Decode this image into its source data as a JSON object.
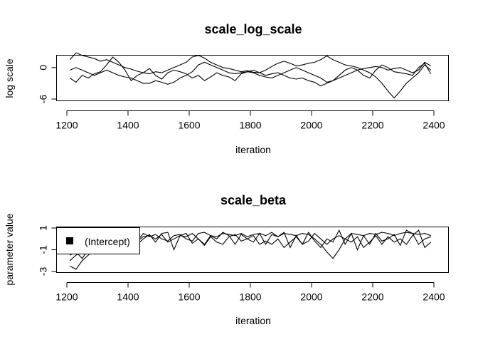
{
  "chart_data": [
    {
      "type": "line",
      "title": "scale_log_scale",
      "xlabel": "iteration",
      "ylabel": "log scale",
      "xlim": [
        1200,
        2400
      ],
      "ylim": [
        -6,
        2
      ],
      "xticks": [
        1200,
        1400,
        1600,
        1800,
        2000,
        2200,
        2400
      ],
      "yticks": [
        -6,
        0
      ],
      "ytick_labels": [
        "-6",
        "0"
      ],
      "x": [
        1210,
        1230,
        1250,
        1270,
        1290,
        1310,
        1330,
        1350,
        1370,
        1390,
        1410,
        1430,
        1450,
        1470,
        1490,
        1510,
        1530,
        1550,
        1570,
        1590,
        1610,
        1630,
        1650,
        1670,
        1690,
        1710,
        1730,
        1750,
        1770,
        1790,
        1810,
        1830,
        1850,
        1870,
        1890,
        1910,
        1930,
        1950,
        1970,
        1990,
        2010,
        2030,
        2050,
        2070,
        2090,
        2110,
        2130,
        2150,
        2170,
        2190,
        2210,
        2230,
        2250,
        2270,
        2290,
        2310,
        2330,
        2350,
        2370,
        2390
      ],
      "series": [
        {
          "values": [
            1.5,
            2.8,
            2.3,
            2.0,
            1.7,
            1.2,
            1.5,
            1.0,
            0.5,
            0.0,
            -0.3,
            -0.7,
            -1.0,
            -1.2,
            -0.8,
            -1.0,
            -0.5,
            0.0,
            0.5,
            1.0,
            2.0,
            2.3,
            1.8,
            1.0,
            0.5,
            0.0,
            -0.2,
            -0.5,
            -0.8,
            -0.6,
            -0.9,
            -1.0,
            -0.5,
            0.2,
            0.8,
            1.2,
            0.8,
            0.3,
            0.5,
            0.8,
            1.0,
            1.5,
            2.2,
            1.5,
            1.0,
            0.5,
            0.3,
            0.0,
            -0.5,
            -1.0,
            -1.8,
            -3.0,
            -4.5,
            -5.8,
            -4.5,
            -3.0,
            -2.0,
            -1.0,
            0.5,
            -0.5
          ]
        },
        {
          "values": [
            -0.5,
            0.0,
            -0.5,
            -1.0,
            -1.5,
            -1.0,
            -0.5,
            -1.0,
            -1.5,
            -1.8,
            -2.0,
            -2.5,
            -3.0,
            -3.0,
            -2.5,
            -2.8,
            -3.2,
            -2.8,
            -2.0,
            -1.5,
            -0.8,
            0.5,
            1.0,
            0.5,
            0.0,
            -0.5,
            -1.0,
            -1.2,
            -1.0,
            -0.8,
            -1.0,
            -1.5,
            -1.8,
            -2.0,
            -1.5,
            -1.0,
            -0.5,
            0.0,
            -0.5,
            -1.0,
            -1.5,
            -2.0,
            -2.8,
            -2.5,
            -2.0,
            -1.5,
            -1.0,
            -0.5,
            -0.2,
            0.0,
            0.2,
            0.0,
            -0.5,
            -0.2,
            0.0,
            -0.5,
            -1.0,
            -0.5,
            1.0,
            0.3
          ]
        },
        {
          "values": [
            -2.0,
            -2.8,
            -1.5,
            -2.0,
            -1.2,
            -0.8,
            0.5,
            2.0,
            1.0,
            -0.5,
            -2.5,
            -1.5,
            -1.0,
            -0.2,
            -1.5,
            -2.2,
            -1.0,
            -0.5,
            -0.8,
            -1.2,
            -2.0,
            -1.5,
            -2.5,
            -1.8,
            -1.0,
            -1.5,
            -1.8,
            -2.5,
            -1.2,
            -0.8,
            -0.5,
            -1.0,
            -1.5,
            -1.2,
            -1.0,
            -1.5,
            -2.0,
            -2.2,
            -2.0,
            -2.5,
            -2.8,
            -3.5,
            -3.0,
            -2.5,
            -1.5,
            -0.5,
            0.0,
            -0.5,
            -1.5,
            -2.0,
            -0.5,
            0.5,
            0.0,
            -0.8,
            -1.0,
            -1.2,
            -1.5,
            0.0,
            0.8,
            -1.2
          ]
        }
      ]
    },
    {
      "type": "line",
      "title": "scale_beta",
      "xlabel": "iteration",
      "ylabel": "parameter value",
      "xlim": [
        1200,
        2400
      ],
      "ylim": [
        -3,
        1
      ],
      "xticks": [
        1200,
        1400,
        1600,
        1800,
        2000,
        2200,
        2400
      ],
      "yticks": [
        -3,
        -1,
        1
      ],
      "ytick_labels": [
        "-3",
        "-1",
        "1"
      ],
      "legend": {
        "position": "top-left",
        "entries": [
          "(Intercept)"
        ]
      },
      "x": [
        1210,
        1230,
        1250,
        1270,
        1290,
        1310,
        1330,
        1350,
        1370,
        1390,
        1410,
        1430,
        1450,
        1470,
        1490,
        1510,
        1530,
        1550,
        1570,
        1590,
        1610,
        1630,
        1650,
        1670,
        1690,
        1710,
        1730,
        1750,
        1770,
        1790,
        1810,
        1830,
        1850,
        1870,
        1890,
        1910,
        1930,
        1950,
        1970,
        1990,
        2010,
        2030,
        2050,
        2070,
        2090,
        2110,
        2130,
        2150,
        2170,
        2190,
        2210,
        2230,
        2250,
        2270,
        2290,
        2310,
        2330,
        2350,
        2370,
        2390
      ],
      "series": [
        {
          "values": [
            -2.5,
            -2.8,
            -2.0,
            -1.5,
            -1.0,
            -0.8,
            -0.5,
            -1.0,
            -0.5,
            -1.2,
            -0.3,
            -0.2,
            0.2,
            0.3,
            0.0,
            0.4,
            -0.3,
            0.0,
            0.3,
            0.2,
            0.5,
            0.0,
            -0.5,
            0.3,
            0.2,
            0.5,
            0.4,
            0.3,
            0.5,
            0.2,
            0.4,
            0.5,
            0.3,
            0.6,
            0.2,
            0.5,
            0.4,
            0.3,
            0.5,
            0.4,
            0.0,
            -0.5,
            -1.2,
            -1.8,
            -1.0,
            0.0,
            0.5,
            0.4,
            0.3,
            0.5,
            0.4,
            0.6,
            0.5,
            0.3,
            0.5,
            0.6,
            0.5,
            0.4,
            0.5,
            0.3
          ]
        },
        {
          "values": [
            -1.5,
            -1.2,
            -1.8,
            -1.0,
            -0.8,
            -1.0,
            -0.5,
            -0.3,
            0.0,
            0.2,
            0.3,
            -0.2,
            0.5,
            0.2,
            0.4,
            0.0,
            -0.2,
            0.3,
            0.4,
            0.0,
            -0.2,
            0.5,
            0.6,
            0.3,
            0.0,
            0.6,
            0.3,
            -0.5,
            0.4,
            0.0,
            -0.3,
            0.5,
            -0.5,
            0.4,
            0.2,
            0.6,
            -0.8,
            0.3,
            -0.5,
            0.6,
            -0.2,
            -0.8,
            0.0,
            -0.3,
            0.8,
            -0.5,
            0.5,
            -1.0,
            0.3,
            -0.5,
            0.5,
            -0.2,
            0.0,
            0.4,
            -0.6,
            0.8,
            0.5,
            -0.5,
            0.0,
            0.2
          ]
        },
        {
          "values": [
            -2.0,
            -1.5,
            -1.2,
            -0.5,
            -1.0,
            -0.5,
            -0.3,
            -0.8,
            -0.2,
            -0.6,
            0.2,
            -0.5,
            0.0,
            0.4,
            -0.3,
            0.5,
            0.6,
            -1.0,
            0.3,
            0.5,
            -0.4,
            0.0,
            -0.6,
            0.2,
            -0.3,
            -0.5,
            0.2,
            0.4,
            -0.2,
            0.0,
            0.3,
            -0.5,
            -0.2,
            -0.5,
            0.0,
            -0.8,
            -0.3,
            0.2,
            -0.5,
            -0.2,
            0.5,
            0.0,
            -0.5,
            0.0,
            0.3,
            0.0,
            -0.3,
            0.2,
            -0.8,
            -0.3,
            0.3,
            -0.5,
            0.2,
            -0.3,
            0.0,
            -0.5,
            0.3,
            0.8,
            -0.8,
            -0.3
          ]
        }
      ]
    }
  ]
}
